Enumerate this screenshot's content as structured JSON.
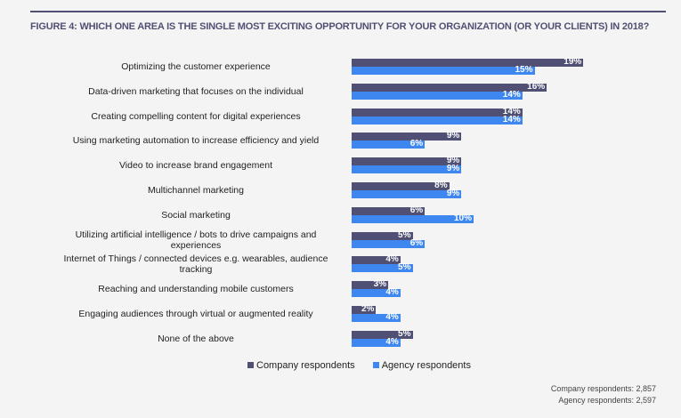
{
  "chart_data": {
    "type": "bar",
    "orientation": "horizontal",
    "title": "FIGURE 4: WHICH ONE AREA IS THE SINGLE MOST EXCITING OPPORTUNITY FOR YOUR ORGANIZATION (OR YOUR CLIENTS) IN 2018?",
    "categories": [
      "Optimizing the customer experience",
      "Data-driven marketing that focuses on the individual",
      "Creating compelling content for digital experiences",
      "Using marketing automation to increase efficiency and yield",
      "Video to increase brand engagement",
      "Multichannel marketing",
      "Social marketing",
      "Utilizing artificial intelligence / bots to drive campaigns and experiences",
      "Internet of Things / connected devices e.g. wearables, audience tracking",
      "Reaching and understanding mobile customers",
      "Engaging audiences through virtual or augmented reality",
      "None of the above"
    ],
    "series": [
      {
        "name": "Company respondents",
        "color": "#4f5073",
        "values": [
          19,
          16,
          14,
          9,
          9,
          8,
          6,
          5,
          4,
          3,
          2,
          5
        ]
      },
      {
        "name": "Agency respondents",
        "color": "#3f87f0",
        "values": [
          15,
          14,
          14,
          6,
          9,
          9,
          10,
          6,
          5,
          4,
          4,
          4
        ]
      }
    ],
    "value_suffix": "%",
    "legend_position": "bottom",
    "grid": false
  },
  "notes": [
    "Company respondents: 2,857",
    "Agency respondents: 2,597"
  ]
}
